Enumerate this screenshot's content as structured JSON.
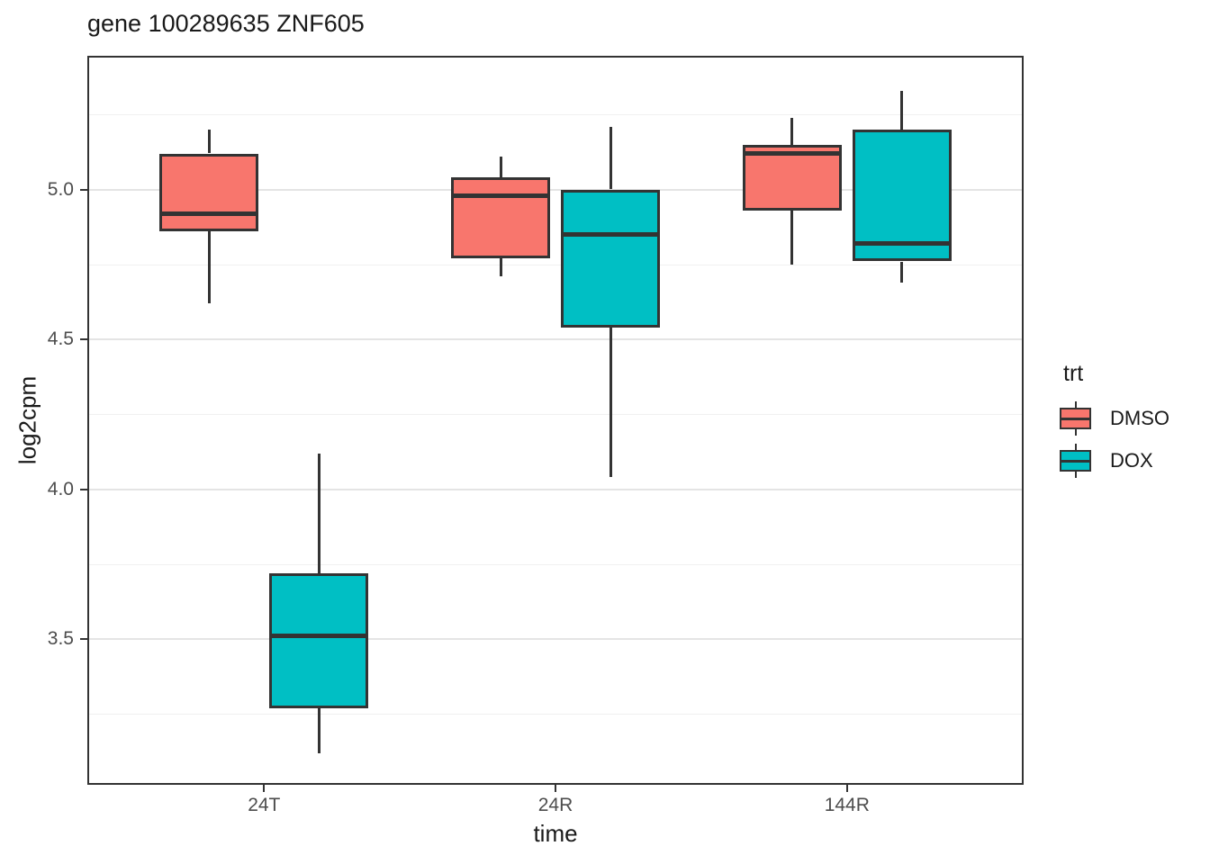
{
  "title": "gene 100289635 ZNF605",
  "legend": {
    "title": "trt",
    "items": [
      {
        "label": "DMSO",
        "color": "#F8766D"
      },
      {
        "label": "DOX",
        "color": "#00BFC4"
      }
    ]
  },
  "chart_data": {
    "type": "boxplot",
    "title": "gene 100289635 ZNF605",
    "xlabel": "time",
    "ylabel": "log2cpm",
    "categories": [
      "24T",
      "24R",
      "144R"
    ],
    "ylim": [
      3.02,
      5.44
    ],
    "y_ticks": [
      5.0,
      4.5,
      4.0,
      3.5
    ],
    "y_minor_gridlines": [
      5.25,
      4.75,
      4.25,
      3.75,
      3.25
    ],
    "grid": true,
    "legend_position": "right",
    "legend_title": "trt",
    "series": [
      {
        "name": "DMSO",
        "color": "#F8766D",
        "boxes": [
          {
            "category": "24T",
            "whisker_low": 4.62,
            "q1": 4.86,
            "median": 4.92,
            "q3": 5.12,
            "whisker_high": 5.2
          },
          {
            "category": "24R",
            "whisker_low": 4.71,
            "q1": 4.77,
            "median": 4.98,
            "q3": 5.04,
            "whisker_high": 5.11
          },
          {
            "category": "144R",
            "whisker_low": 4.75,
            "q1": 4.93,
            "median": 5.12,
            "q3": 5.15,
            "whisker_high": 5.24
          }
        ]
      },
      {
        "name": "DOX",
        "color": "#00BFC4",
        "boxes": [
          {
            "category": "24T",
            "whisker_low": 3.12,
            "q1": 3.27,
            "median": 3.51,
            "q3": 3.72,
            "whisker_high": 4.12
          },
          {
            "category": "24R",
            "whisker_low": 4.04,
            "q1": 4.54,
            "median": 4.85,
            "q3": 5.0,
            "whisker_high": 5.21
          },
          {
            "category": "144R",
            "whisker_low": 4.69,
            "q1": 4.76,
            "median": 4.82,
            "q3": 5.2,
            "whisker_high": 5.33
          }
        ]
      }
    ],
    "box_border_color": "#333333",
    "gridline_major_color": "#e4e4e4",
    "gridline_minor_color": "#f0f0f0",
    "tick_label_color": "#4d4d4d",
    "panel_border_color": "#333333"
  }
}
